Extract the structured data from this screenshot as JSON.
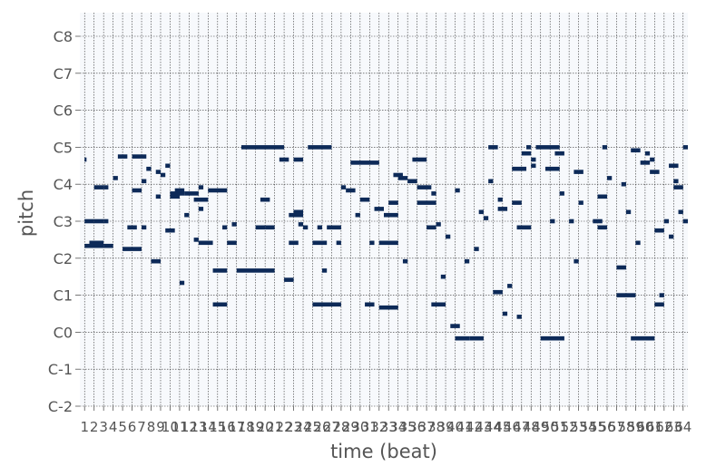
{
  "chart_data": {
    "type": "pianoroll",
    "xlabel": "time (beat)",
    "ylabel": "pitch",
    "x_range": [
      0.5,
      64.5
    ],
    "x_ticks": [
      "1",
      "2",
      "3",
      "4",
      "5",
      "6",
      "7",
      "8",
      "9",
      "10",
      "11",
      "12",
      "13",
      "14",
      "15",
      "16",
      "17",
      "18",
      "19",
      "20",
      "21",
      "22",
      "23",
      "24",
      "25",
      "26",
      "27",
      "28",
      "29",
      "30",
      "31",
      "32",
      "33",
      "34",
      "35",
      "36",
      "37",
      "38",
      "39",
      "40",
      "41",
      "42",
      "43",
      "44",
      "45",
      "46",
      "47",
      "48",
      "49",
      "50",
      "51",
      "52",
      "53",
      "54",
      "55",
      "56",
      "57",
      "58",
      "59",
      "60",
      "61",
      "62",
      "63",
      "64"
    ],
    "y_ticks": [
      {
        "label": "C-2",
        "pitch": 0
      },
      {
        "label": "C-1",
        "pitch": 12
      },
      {
        "label": "C0",
        "pitch": 24
      },
      {
        "label": "C1",
        "pitch": 36
      },
      {
        "label": "C2",
        "pitch": 48
      },
      {
        "label": "C3",
        "pitch": 60
      },
      {
        "label": "C4",
        "pitch": 72
      },
      {
        "label": "C5",
        "pitch": 84
      },
      {
        "label": "C6",
        "pitch": 96
      },
      {
        "label": "C7",
        "pitch": 108
      },
      {
        "label": "C8",
        "pitch": 120
      }
    ],
    "y_range": [
      0,
      127
    ],
    "grid": true,
    "colors": {
      "note": "#0d2a58",
      "plot_bg": "#f7f9fc",
      "grid": "#333333"
    },
    "notes": [
      [
        1.0,
        3.0,
        52
      ],
      [
        1.0,
        2.0,
        60
      ],
      [
        1.0,
        1.2,
        80
      ],
      [
        1.5,
        3.0,
        53
      ],
      [
        2.0,
        3.0,
        60
      ],
      [
        2.0,
        3.0,
        71
      ],
      [
        3.0,
        4.0,
        52
      ],
      [
        3.0,
        3.5,
        71
      ],
      [
        3.0,
        3.5,
        60
      ],
      [
        4.0,
        4.5,
        74
      ],
      [
        4.5,
        5.5,
        81
      ],
      [
        5.0,
        7.0,
        51
      ],
      [
        5.5,
        6.5,
        58
      ],
      [
        6.0,
        7.5,
        81
      ],
      [
        6.0,
        7.0,
        70
      ],
      [
        7.0,
        7.5,
        58
      ],
      [
        7.0,
        7.5,
        73
      ],
      [
        7.5,
        8.0,
        77
      ],
      [
        8.0,
        9.0,
        47
      ],
      [
        8.5,
        9.0,
        76
      ],
      [
        8.5,
        9.0,
        68
      ],
      [
        9.0,
        9.5,
        75
      ],
      [
        9.5,
        10.0,
        78
      ],
      [
        9.5,
        10.5,
        57
      ],
      [
        10.0,
        11.0,
        68
      ],
      [
        10.0,
        11.5,
        69
      ],
      [
        10.5,
        11.5,
        70
      ],
      [
        11.0,
        11.5,
        40
      ],
      [
        11.5,
        13.0,
        69
      ],
      [
        11.5,
        12.0,
        62
      ],
      [
        12.5,
        13.0,
        54
      ],
      [
        12.5,
        14.0,
        67
      ],
      [
        13.0,
        13.5,
        64
      ],
      [
        13.0,
        14.5,
        53
      ],
      [
        13.0,
        13.5,
        71
      ],
      [
        14.0,
        16.0,
        70
      ],
      [
        14.5,
        16.0,
        33
      ],
      [
        14.5,
        16.0,
        44
      ],
      [
        15.5,
        16.0,
        58
      ],
      [
        16.5,
        17.0,
        59
      ],
      [
        16.0,
        17.0,
        53
      ],
      [
        17.5,
        22.0,
        84
      ],
      [
        17.0,
        21.0,
        44
      ],
      [
        19.0,
        20.0,
        58
      ],
      [
        19.5,
        20.5,
        67
      ],
      [
        20.0,
        21.0,
        58
      ],
      [
        21.5,
        22.5,
        80
      ],
      [
        22.0,
        23.0,
        41
      ],
      [
        22.5,
        24.0,
        62
      ],
      [
        22.5,
        23.5,
        53
      ],
      [
        23.0,
        24.0,
        63
      ],
      [
        23.0,
        24.0,
        80
      ],
      [
        23.5,
        24.0,
        59
      ],
      [
        24.0,
        24.5,
        58
      ],
      [
        24.5,
        27.0,
        84
      ],
      [
        25.0,
        28.0,
        33
      ],
      [
        25.0,
        26.5,
        53
      ],
      [
        25.5,
        26.0,
        58
      ],
      [
        26.0,
        26.5,
        44
      ],
      [
        26.5,
        28.0,
        58
      ],
      [
        27.5,
        28.0,
        53
      ],
      [
        28.0,
        28.5,
        71
      ],
      [
        28.5,
        29.5,
        70
      ],
      [
        29.0,
        32.0,
        79
      ],
      [
        29.5,
        30.0,
        62
      ],
      [
        30.0,
        31.0,
        67
      ],
      [
        30.5,
        31.5,
        33
      ],
      [
        31.0,
        31.5,
        53
      ],
      [
        31.5,
        32.5,
        64
      ],
      [
        32.0,
        34.0,
        32
      ],
      [
        32.0,
        34.0,
        53
      ],
      [
        32.5,
        34.0,
        62
      ],
      [
        33.0,
        34.0,
        66
      ],
      [
        33.5,
        34.5,
        75
      ],
      [
        34.0,
        35.0,
        74
      ],
      [
        34.5,
        35.0,
        47
      ],
      [
        35.0,
        36.0,
        73
      ],
      [
        35.5,
        37.0,
        80
      ],
      [
        36.0,
        37.5,
        71
      ],
      [
        36.0,
        38.0,
        66
      ],
      [
        37.5,
        39.0,
        33
      ],
      [
        37.0,
        38.0,
        58
      ],
      [
        37.5,
        38.0,
        69
      ],
      [
        38.0,
        38.5,
        59
      ],
      [
        38.5,
        39.0,
        42
      ],
      [
        39.0,
        39.5,
        55
      ],
      [
        39.5,
        40.5,
        26
      ],
      [
        40.0,
        41.5,
        22
      ],
      [
        40.0,
        40.5,
        70
      ],
      [
        41.0,
        41.5,
        47
      ],
      [
        41.5,
        43.0,
        22
      ],
      [
        42.0,
        42.5,
        51
      ],
      [
        42.5,
        43.0,
        63
      ],
      [
        43.0,
        43.5,
        61
      ],
      [
        43.5,
        44.5,
        84
      ],
      [
        43.5,
        44.0,
        73
      ],
      [
        44.0,
        45.0,
        37
      ],
      [
        44.5,
        45.5,
        64
      ],
      [
        44.5,
        45.0,
        67
      ],
      [
        45.0,
        45.5,
        30
      ],
      [
        45.5,
        46.0,
        39
      ],
      [
        46.0,
        47.0,
        66
      ],
      [
        46.0,
        47.5,
        77
      ],
      [
        46.5,
        47.0,
        29
      ],
      [
        46.5,
        48.0,
        58
      ],
      [
        47.0,
        48.0,
        82
      ],
      [
        47.5,
        48.0,
        84
      ],
      [
        48.0,
        48.5,
        80
      ],
      [
        48.0,
        48.5,
        78
      ],
      [
        48.5,
        51.0,
        84
      ],
      [
        49.0,
        51.5,
        22
      ],
      [
        49.5,
        51.0,
        77
      ],
      [
        50.0,
        50.5,
        60
      ],
      [
        50.5,
        51.5,
        82
      ],
      [
        51.0,
        51.5,
        69
      ],
      [
        52.0,
        52.5,
        60
      ],
      [
        52.5,
        53.0,
        47
      ],
      [
        52.5,
        53.5,
        76
      ],
      [
        53.0,
        53.5,
        66
      ],
      [
        54.5,
        55.5,
        60
      ],
      [
        55.0,
        56.0,
        68
      ],
      [
        55.0,
        56.0,
        58
      ],
      [
        55.5,
        56.0,
        84
      ],
      [
        56.0,
        56.5,
        74
      ],
      [
        57.0,
        58.0,
        45
      ],
      [
        57.0,
        59.0,
        36
      ],
      [
        57.5,
        58.0,
        72
      ],
      [
        58.0,
        58.5,
        63
      ],
      [
        58.5,
        59.5,
        83
      ],
      [
        59.0,
        59.5,
        53
      ],
      [
        59.5,
        60.5,
        79
      ],
      [
        60.0,
        60.5,
        82
      ],
      [
        60.5,
        61.0,
        80
      ],
      [
        61.0,
        62.0,
        33
      ],
      [
        61.5,
        62.0,
        36
      ],
      [
        62.0,
        62.5,
        60
      ],
      [
        62.5,
        63.5,
        78
      ],
      [
        63.0,
        63.5,
        73
      ],
      [
        63.5,
        64.0,
        63
      ],
      [
        64.0,
        64.5,
        84
      ],
      [
        58.5,
        61.0,
        22
      ],
      [
        60.5,
        61.5,
        76
      ],
      [
        61.0,
        62.0,
        57
      ],
      [
        62.5,
        63.0,
        55
      ],
      [
        63.0,
        64.0,
        71
      ],
      [
        64.0,
        64.5,
        60
      ]
    ]
  }
}
